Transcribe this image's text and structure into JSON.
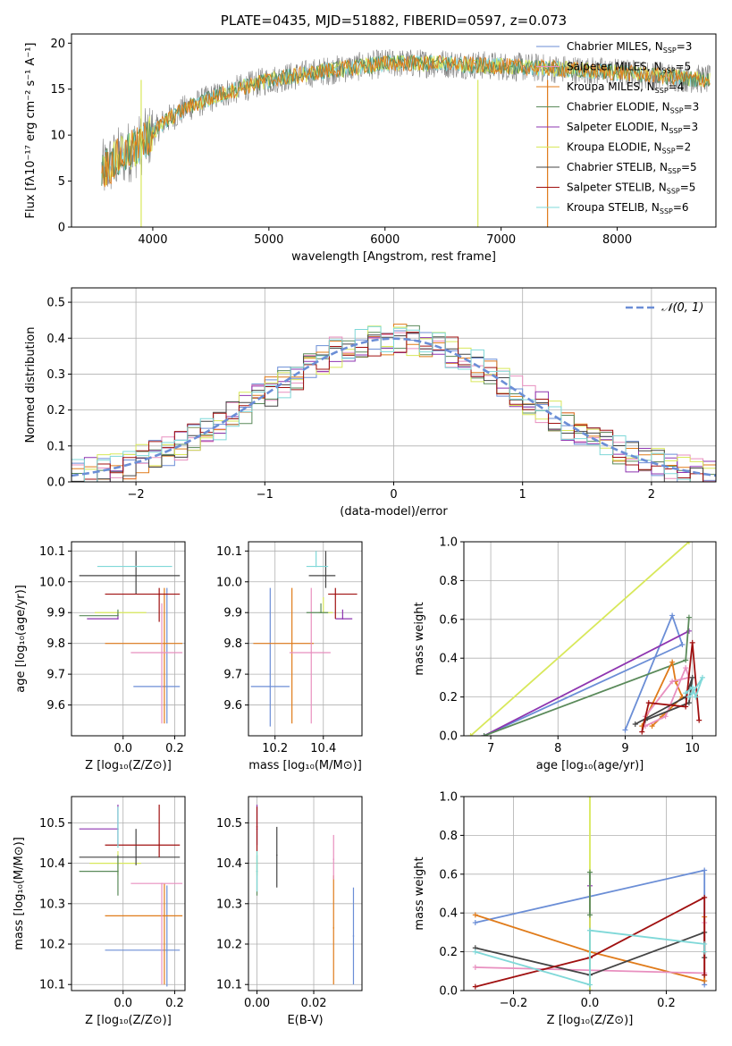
{
  "colors": {
    "blue": "#6b8ed6",
    "orange": "#e07b1a",
    "pink": "#e88fbf",
    "purple": "#8e35b0",
    "yellow": "#d8e85a",
    "green": "#5a8a5a",
    "dark": "#444444",
    "red": "#a01010",
    "cyan": "#7fd8d8",
    "gray": "#7f7f7f",
    "grid": "#b0b0b0"
  },
  "chart_data": [
    {
      "id": "spectrum",
      "type": "line",
      "title": "PLATE=0435, MJD=51882, FIBERID=0597, z=0.073",
      "xlabel": "wavelength [Angstrom, rest frame]",
      "ylabel": "Flux [fλ10⁻¹⁷ erg cm⁻² s⁻¹ A⁻¹]",
      "xlim": [
        3300,
        8850
      ],
      "ylim": [
        0,
        21
      ],
      "xticks": [
        4000,
        5000,
        6000,
        7000,
        8000
      ],
      "yticks": [
        0,
        5,
        10,
        15,
        20
      ],
      "grid": false,
      "legend_position": "right",
      "continuum_x": [
        3560,
        3700,
        3900,
        4100,
        4300,
        4600,
        5000,
        5500,
        6000,
        6500,
        7000,
        7500,
        8000,
        8500,
        8800
      ],
      "continuum_y": [
        6.0,
        7.5,
        9.0,
        11.5,
        13.0,
        14.5,
        16.0,
        17.0,
        17.8,
        17.8,
        17.5,
        17.2,
        16.8,
        16.3,
        16.0
      ],
      "legend": [
        {
          "text": "Chabrier MILES, N",
          "sub": "SSP",
          "suffix": "=3",
          "color": "blue"
        },
        {
          "text": "Salpeter MILES, N",
          "sub": "SSP",
          "suffix": "=5",
          "color": "pink"
        },
        {
          "text": "Kroupa MILES, N",
          "sub": "SSP",
          "suffix": "=4",
          "color": "orange"
        },
        {
          "text": "Chabrier ELODIE, N",
          "sub": "SSP",
          "suffix": "=3",
          "color": "green"
        },
        {
          "text": "Salpeter ELODIE, N",
          "sub": "SSP",
          "suffix": "=3",
          "color": "purple"
        },
        {
          "text": "Kroupa ELODIE, N",
          "sub": "SSP",
          "suffix": "=2",
          "color": "yellow"
        },
        {
          "text": "Chabrier STELIB, N",
          "sub": "SSP",
          "suffix": "=5",
          "color": "dark"
        },
        {
          "text": "Salpeter STELIB, N",
          "sub": "SSP",
          "suffix": "=5",
          "color": "red"
        },
        {
          "text": "Kroupa STELIB, N",
          "sub": "SSP",
          "suffix": "=6",
          "color": "cyan"
        }
      ]
    },
    {
      "id": "residuals",
      "type": "line",
      "xlabel": "(data-model)/error",
      "ylabel": "Normed distribution",
      "xlim": [
        -2.5,
        2.5
      ],
      "ylim": [
        0,
        0.54
      ],
      "xticks": [
        -2,
        -1,
        0,
        1,
        2
      ],
      "yticks": [
        0.0,
        0.1,
        0.2,
        0.3,
        0.4,
        0.5
      ],
      "grid": true,
      "legend": "𝒩(0, 1)",
      "legend_position": "top-right",
      "bin_width": 0.1
    },
    {
      "id": "age_vs_z",
      "type": "scatter",
      "xlabel": "Z [log₁₀(Z/Z⊙)]",
      "ylabel": "age  [log₁₀(age/yr)]",
      "xlim": [
        -0.2,
        0.24
      ],
      "ylim": [
        9.5,
        10.13
      ],
      "xticks": [
        0.0,
        0.2
      ],
      "yticks": [
        9.6,
        9.7,
        9.8,
        9.9,
        10.0,
        10.1
      ],
      "grid": true,
      "points": [
        {
          "color": "blue",
          "x": 0.17,
          "xerr": [
            0.13,
            0.05
          ],
          "y": 9.66,
          "yerr": [
            0.12,
            0.32
          ]
        },
        {
          "color": "orange",
          "x": 0.16,
          "xerr": [
            0.23,
            0.07
          ],
          "y": 9.8,
          "yerr": [
            0.26,
            0.18
          ]
        },
        {
          "color": "pink",
          "x": 0.15,
          "xerr": [
            0.12,
            0.08
          ],
          "y": 9.77,
          "yerr": [
            0.23,
            0.16
          ]
        },
        {
          "color": "purple",
          "x": -0.02,
          "xerr": [
            0.12,
            0.0
          ],
          "y": 9.88,
          "yerr": [
            0.0,
            0.02
          ]
        },
        {
          "color": "yellow",
          "x": -0.02,
          "xerr": [
            0.09,
            0.11
          ],
          "y": 9.9,
          "yerr": [
            0.0,
            0.0
          ]
        },
        {
          "color": "green",
          "x": -0.02,
          "xerr": [
            0.15,
            0.0
          ],
          "y": 9.89,
          "yerr": [
            0.0,
            0.02
          ]
        },
        {
          "color": "dark",
          "x": 0.05,
          "xerr": [
            0.22,
            0.17
          ],
          "y": 10.02,
          "yerr": [
            0.06,
            0.08
          ]
        },
        {
          "color": "red",
          "x": 0.14,
          "xerr": [
            0.21,
            0.08
          ],
          "y": 9.96,
          "yerr": [
            0.09,
            0.02
          ]
        },
        {
          "color": "cyan",
          "x": 0.05,
          "xerr": [
            0.15,
            0.14
          ],
          "y": 10.05,
          "yerr": [
            0.0,
            0.0
          ]
        }
      ]
    },
    {
      "id": "age_vs_mass",
      "type": "scatter",
      "xlabel": "mass [log₁₀(M/M⊙)]",
      "ylabel": "",
      "xlim": [
        10.09,
        10.56
      ],
      "ylim": [
        9.5,
        10.13
      ],
      "xticks": [
        10.2,
        10.4
      ],
      "yticks": [
        9.6,
        9.7,
        9.8,
        9.9,
        10.0,
        10.1
      ],
      "grid": true,
      "points": [
        {
          "color": "blue",
          "x": 10.18,
          "xerr": [
            0.08,
            0.08
          ],
          "y": 9.66,
          "yerr": [
            0.13,
            0.32
          ]
        },
        {
          "color": "orange",
          "x": 10.27,
          "xerr": [
            0.16,
            0.09
          ],
          "y": 9.8,
          "yerr": [
            0.26,
            0.18
          ]
        },
        {
          "color": "pink",
          "x": 10.35,
          "xerr": [
            0.09,
            0.08
          ],
          "y": 9.77,
          "yerr": [
            0.23,
            0.21
          ]
        },
        {
          "color": "purple",
          "x": 10.48,
          "xerr": [
            0.03,
            0.04
          ],
          "y": 9.88,
          "yerr": [
            0.0,
            0.03
          ]
        },
        {
          "color": "yellow",
          "x": 10.4,
          "xerr": [
            0.02,
            0.04
          ],
          "y": 9.9,
          "yerr": [
            0.0,
            0.05
          ]
        },
        {
          "color": "green",
          "x": 10.39,
          "xerr": [
            0.06,
            0.03
          ],
          "y": 9.9,
          "yerr": [
            0.0,
            0.03
          ]
        },
        {
          "color": "dark",
          "x": 10.41,
          "xerr": [
            0.07,
            0.04
          ],
          "y": 10.02,
          "yerr": [
            0.04,
            0.08
          ]
        },
        {
          "color": "red",
          "x": 10.45,
          "xerr": [
            0.03,
            0.09
          ],
          "y": 9.96,
          "yerr": [
            0.08,
            0.02
          ]
        },
        {
          "color": "cyan",
          "x": 10.37,
          "xerr": [
            0.04,
            0.05
          ],
          "y": 10.05,
          "yerr": [
            0.0,
            0.05
          ]
        }
      ]
    },
    {
      "id": "mw_vs_age",
      "type": "line",
      "xlabel": "age  [log₁₀(age/yr)]",
      "ylabel": "mass weight",
      "xlim": [
        6.6,
        10.35
      ],
      "ylim": [
        0,
        1
      ],
      "xticks": [
        7,
        8,
        9,
        10
      ],
      "yticks": [
        0.0,
        0.2,
        0.4,
        0.6,
        0.8,
        1.0
      ],
      "grid": true,
      "series": [
        {
          "color": "blue",
          "x": [
            6.9,
            9.85,
            9.7,
            9.0
          ],
          "y": [
            0.0,
            0.47,
            0.62,
            0.03
          ]
        },
        {
          "color": "yellow",
          "x": [
            6.7,
            9.95
          ],
          "y": [
            0.0,
            1.0
          ]
        },
        {
          "color": "purple",
          "x": [
            6.9,
            9.95
          ],
          "y": [
            0.0,
            0.54
          ]
        },
        {
          "color": "green",
          "x": [
            6.9,
            9.9,
            9.95
          ],
          "y": [
            0.0,
            0.39,
            0.61
          ]
        },
        {
          "color": "orange",
          "x": [
            9.25,
            9.7,
            9.75,
            9.85,
            9.55,
            9.4
          ],
          "y": [
            0.05,
            0.38,
            0.28,
            0.2,
            0.1,
            0.05
          ]
        },
        {
          "color": "pink",
          "x": [
            9.3,
            9.6,
            9.9,
            9.95,
            9.7,
            9.3
          ],
          "y": [
            0.05,
            0.1,
            0.35,
            0.3,
            0.28,
            0.1
          ]
        },
        {
          "color": "dark",
          "x": [
            9.15,
            9.9,
            10.0,
            9.95,
            9.3
          ],
          "y": [
            0.06,
            0.2,
            0.3,
            0.17,
            0.08
          ]
        },
        {
          "color": "red",
          "x": [
            9.25,
            9.35,
            9.9,
            10.0,
            10.1
          ],
          "y": [
            0.02,
            0.17,
            0.15,
            0.48,
            0.08
          ]
        },
        {
          "color": "cyan",
          "x": [
            9.9,
            10.0,
            10.05,
            10.15,
            10.0,
            9.95
          ],
          "y": [
            0.22,
            0.25,
            0.2,
            0.3,
            0.22,
            0.2
          ]
        }
      ]
    },
    {
      "id": "mass_vs_z",
      "type": "scatter",
      "xlabel": "Z [log₁₀(Z/Z⊙)]",
      "ylabel": "mass [log₁₀(M/M⊙)]",
      "xlim": [
        -0.2,
        0.24
      ],
      "ylim": [
        10.085,
        10.565
      ],
      "xticks": [
        0.0,
        0.2
      ],
      "yticks": [
        10.1,
        10.2,
        10.3,
        10.4,
        10.5
      ],
      "grid": true,
      "points": [
        {
          "color": "blue",
          "x": 0.17,
          "xerr": [
            0.24,
            0.05
          ],
          "y": 10.185,
          "yerr": [
            0.09,
            0.16
          ]
        },
        {
          "color": "orange",
          "x": 0.16,
          "xerr": [
            0.23,
            0.07
          ],
          "y": 10.27,
          "yerr": [
            0.17,
            0.08
          ]
        },
        {
          "color": "pink",
          "x": 0.15,
          "xerr": [
            0.12,
            0.08
          ],
          "y": 10.35,
          "yerr": [
            0.25,
            0.0
          ]
        },
        {
          "color": "purple",
          "x": -0.02,
          "xerr": [
            0.15,
            0.0
          ],
          "y": 10.485,
          "yerr": [
            0.04,
            0.06
          ]
        },
        {
          "color": "yellow",
          "x": -0.02,
          "xerr": [
            0.11,
            0.09
          ],
          "y": 10.4,
          "yerr": [
            0.03,
            0.03
          ]
        },
        {
          "color": "green",
          "x": -0.02,
          "xerr": [
            0.15,
            0.0
          ],
          "y": 10.38,
          "yerr": [
            0.06,
            0.04
          ]
        },
        {
          "color": "dark",
          "x": 0.05,
          "xerr": [
            0.22,
            0.17
          ],
          "y": 10.415,
          "yerr": [
            0.02,
            0.07
          ]
        },
        {
          "color": "red",
          "x": 0.14,
          "xerr": [
            0.21,
            0.08
          ],
          "y": 10.445,
          "yerr": [
            0.03,
            0.1
          ]
        },
        {
          "color": "cyan",
          "x": -0.02,
          "xerr": [
            0.0,
            0.0
          ],
          "y": 10.44,
          "yerr": [
            0.0,
            0.1
          ]
        }
      ]
    },
    {
      "id": "mass_vs_ebv",
      "type": "scatter",
      "xlabel": "E(B-V)",
      "ylabel": "",
      "xlim": [
        -0.003,
        0.037
      ],
      "ylim": [
        10.085,
        10.565
      ],
      "xticks": [
        0.0,
        0.02
      ],
      "yticks": [
        10.1,
        10.2,
        10.3,
        10.4,
        10.5
      ],
      "grid": true,
      "points": [
        {
          "color": "blue",
          "x": 0.034,
          "xerr": [
            0,
            0
          ],
          "y": 10.22,
          "yerr": [
            0.12,
            0.12
          ]
        },
        {
          "color": "orange",
          "x": 0.027,
          "xerr": [
            0,
            0
          ],
          "y": 10.24,
          "yerr": [
            0.14,
            0.13
          ]
        },
        {
          "color": "pink",
          "x": 0.027,
          "xerr": [
            0,
            0
          ],
          "y": 10.41,
          "yerr": [
            0.05,
            0.06
          ]
        },
        {
          "color": "purple",
          "x": 0.0,
          "xerr": [
            0,
            0
          ],
          "y": 10.485,
          "yerr": [
            0.04,
            0.06
          ]
        },
        {
          "color": "yellow",
          "x": 0.0,
          "xerr": [
            0,
            0
          ],
          "y": 10.4,
          "yerr": [
            0.03,
            0.03
          ]
        },
        {
          "color": "green",
          "x": 0.0,
          "xerr": [
            0,
            0
          ],
          "y": 10.38,
          "yerr": [
            0.06,
            0.04
          ]
        },
        {
          "color": "dark",
          "x": 0.007,
          "xerr": [
            0,
            0
          ],
          "y": 10.42,
          "yerr": [
            0.08,
            0.07
          ]
        },
        {
          "color": "red",
          "x": 0.0,
          "xerr": [
            0,
            0
          ],
          "y": 10.49,
          "yerr": [
            0.06,
            0.05
          ]
        },
        {
          "color": "cyan",
          "x": 0.0,
          "xerr": [
            0,
            0
          ],
          "y": 10.38,
          "yerr": [
            0.05,
            0.05
          ]
        }
      ]
    },
    {
      "id": "mw_vs_z",
      "type": "line",
      "xlabel": "Z [log₁₀(Z/Z⊙)]",
      "ylabel": "mass weight",
      "xlim": [
        -0.33,
        0.33
      ],
      "ylim": [
        0,
        1
      ],
      "xticks": [
        -0.2,
        0.0,
        0.2
      ],
      "yticks": [
        0.0,
        0.2,
        0.4,
        0.6,
        0.8,
        1.0
      ],
      "grid": true,
      "series": [
        {
          "color": "blue",
          "x": [
            -0.3,
            0.3,
            0.3
          ],
          "y": [
            0.35,
            0.62,
            0.03
          ]
        },
        {
          "color": "orange",
          "x": [
            -0.3,
            0.0,
            0.3,
            0.3
          ],
          "y": [
            0.39,
            0.2,
            0.05,
            0.38
          ]
        },
        {
          "color": "pink",
          "x": [
            -0.3,
            0.3,
            0.3
          ],
          "y": [
            0.12,
            0.09,
            0.35
          ]
        },
        {
          "color": "purple",
          "x": [
            0.0,
            0.0
          ],
          "y": [
            0.0,
            0.54
          ]
        },
        {
          "color": "yellow",
          "x": [
            0.0,
            0.0
          ],
          "y": [
            0.0,
            1.0
          ]
        },
        {
          "color": "green",
          "x": [
            0.0,
            0.0
          ],
          "y": [
            0.39,
            0.61
          ]
        },
        {
          "color": "dark",
          "x": [
            -0.3,
            0.0,
            0.3,
            0.3
          ],
          "y": [
            0.22,
            0.08,
            0.3,
            0.17
          ]
        },
        {
          "color": "red",
          "x": [
            -0.3,
            0.0,
            0.3,
            0.3
          ],
          "y": [
            0.02,
            0.17,
            0.48,
            0.08
          ]
        },
        {
          "color": "cyan",
          "x": [
            -0.3,
            0.0,
            0.0,
            0.3,
            0.3
          ],
          "y": [
            0.2,
            0.03,
            0.31,
            0.24,
            0.2
          ]
        }
      ]
    }
  ]
}
